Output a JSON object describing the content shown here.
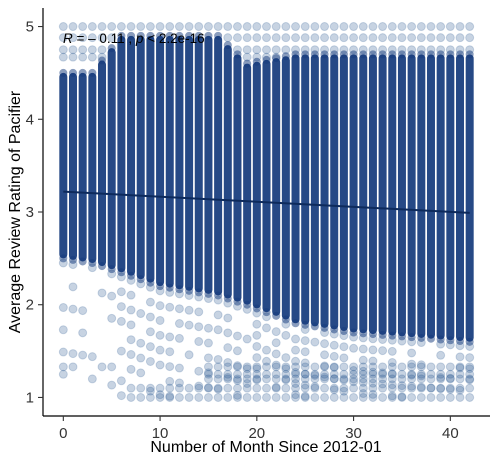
{
  "chart_data": {
    "type": "scatter",
    "xlabel": "Number of Month Since 2012-01",
    "ylabel": "Average Review Rating of Pacifier",
    "xlim": [
      -2.1,
      44.1
    ],
    "ylim": [
      0.8,
      5.2
    ],
    "x_ticks": [
      "0",
      "10",
      "20",
      "30",
      "40"
    ],
    "y_ticks": [
      "1",
      "2",
      "3",
      "4",
      "5"
    ],
    "point_color": "#1f4e8c",
    "point_opacity": 0.25,
    "dense_band_color": "#133a7c",
    "grid": false,
    "months": {
      "start": 0,
      "end": 42
    },
    "dense_band": [
      {
        "x": 0,
        "ymin": 2.5,
        "ymax": 4.5
      },
      {
        "x": 3,
        "ymin": 2.45,
        "ymax": 4.5
      },
      {
        "x": 6,
        "ymin": 2.35,
        "ymax": 4.9
      },
      {
        "x": 10,
        "ymin": 2.2,
        "ymax": 4.9
      },
      {
        "x": 16,
        "ymin": 2.1,
        "ymax": 4.9
      },
      {
        "x": 19,
        "ymin": 2.0,
        "ymax": 4.6
      },
      {
        "x": 24,
        "ymin": 1.8,
        "ymax": 4.7
      },
      {
        "x": 30,
        "ymin": 1.7,
        "ymax": 4.7
      },
      {
        "x": 36,
        "ymin": 1.65,
        "ymax": 4.7
      },
      {
        "x": 42,
        "ymin": 1.6,
        "ymax": 4.7
      }
    ],
    "trend_line": {
      "x": [
        0,
        42
      ],
      "y": [
        3.22,
        2.99
      ],
      "color": "#0d2a5c"
    },
    "annotation": {
      "r_symbol": "R",
      "r_text": " = – 0.11 , ",
      "p_symbol": "p",
      "p_text": " < 2.2e-16"
    }
  }
}
